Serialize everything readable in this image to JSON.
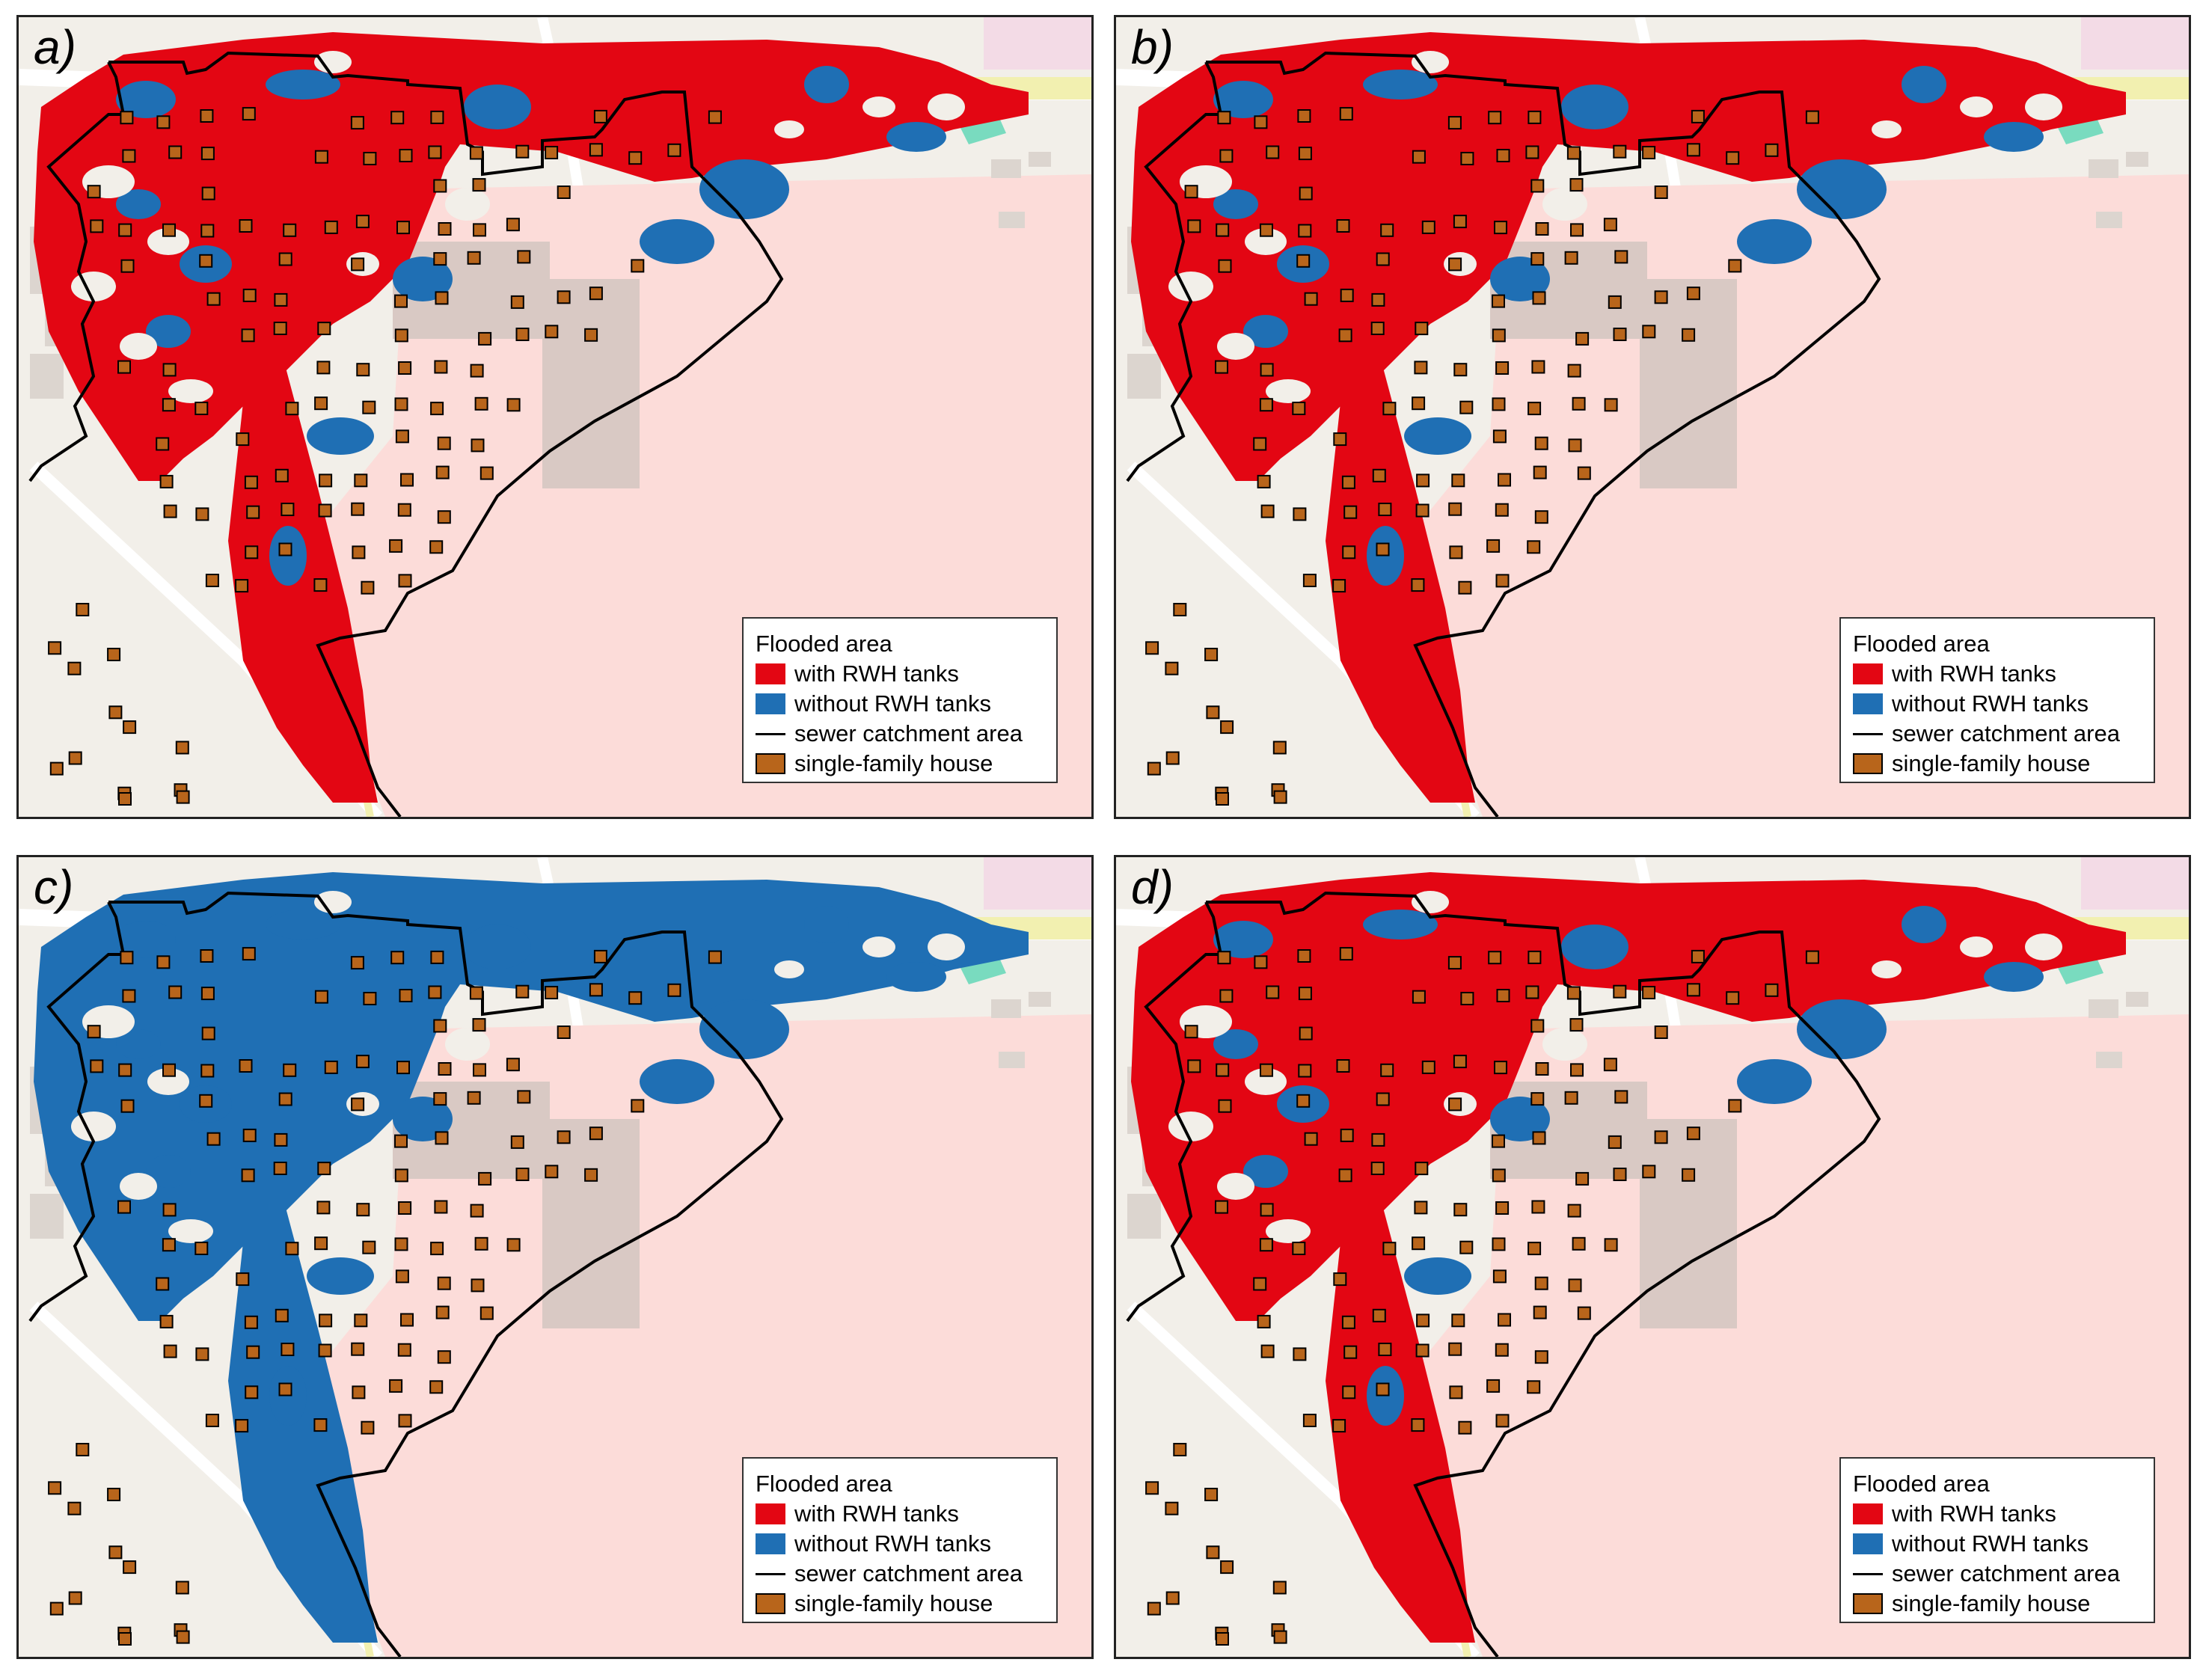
{
  "colors": {
    "with_rwh": "#e30613",
    "without_rwh": "#1f6fb4",
    "catchment_line": "#000000",
    "house": "#b8651b",
    "background": "#f2efe9",
    "parking": "#fcdcd9",
    "road_yellow": "#f2f0b0",
    "green_area": "#79dbbf",
    "pink_area": "#f3dbe6"
  },
  "legend": {
    "title": "Flooded area",
    "items": [
      {
        "label": "with RWH tanks",
        "symbol": "red-fill"
      },
      {
        "label": "without RWH tanks",
        "symbol": "blue-fill"
      },
      {
        "label": "sewer catchment area",
        "symbol": "black-line"
      },
      {
        "label": "single-family house",
        "symbol": "brown-house"
      }
    ]
  },
  "panels": [
    {
      "label": "a)",
      "flood_color": "with_rwh",
      "patches_color": "without_rwh"
    },
    {
      "label": "b)",
      "flood_color": "with_rwh",
      "patches_color": "without_rwh"
    },
    {
      "label": "c)",
      "flood_color": "without_rwh",
      "patches_color": "without_rwh"
    },
    {
      "label": "d)",
      "flood_color": "with_rwh",
      "patches_color": "without_rwh"
    }
  ]
}
